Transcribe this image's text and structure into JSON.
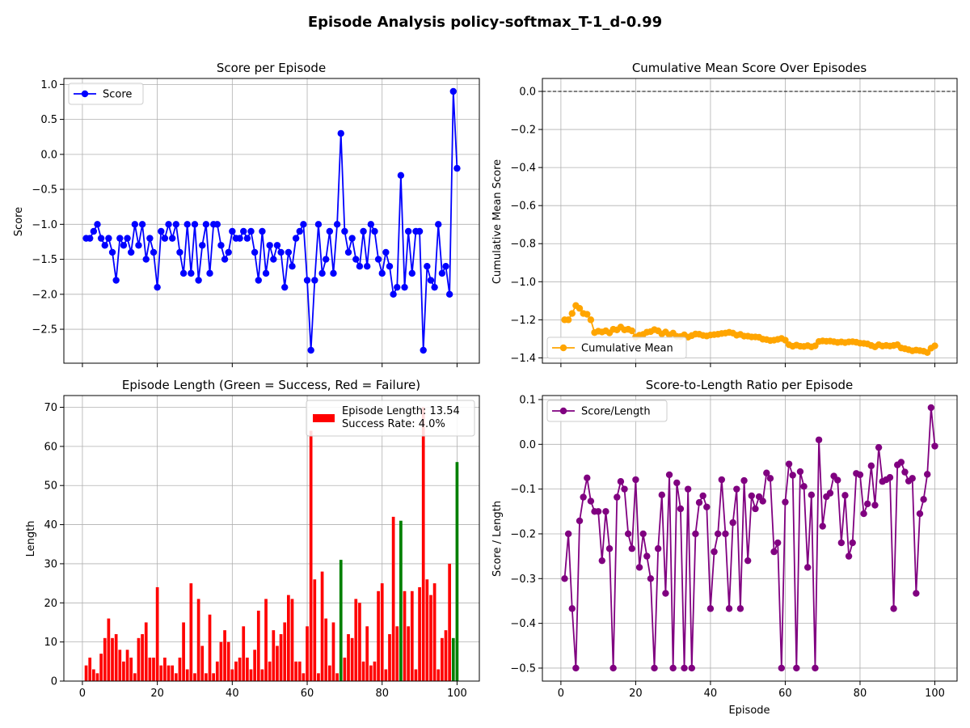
{
  "figure_title": "Episode Analysis policy-softmax_T-1_d-0.99",
  "chart_data": [
    {
      "id": "score",
      "type": "line",
      "title": "Score per Episode",
      "xlabel": "",
      "ylabel": "Score",
      "xlim": [
        -4.95,
        105.95
      ],
      "ylim": [
        -2.985,
        1.085
      ],
      "xticks": [
        0,
        20,
        40,
        60,
        80,
        100
      ],
      "show_xtick_labels": false,
      "yticks": [
        -2.5,
        -2.0,
        -1.5,
        -1.0,
        -0.5,
        0.0,
        0.5,
        1.0
      ],
      "ytick_labels": [
        "−2.5",
        "−2.0",
        "−1.5",
        "−1.0",
        "−0.5",
        "0.0",
        "0.5",
        "1.0"
      ],
      "grid": true,
      "legend": "top-left",
      "series": [
        {
          "name": "Score",
          "color": "#0000ff",
          "marker": "circle",
          "y": [
            -1.2,
            -1.2,
            -1.1,
            -1.0,
            -1.2,
            -1.3,
            -1.2,
            -1.4,
            -1.8,
            -1.2,
            -1.3,
            -1.2,
            -1.4,
            -1.0,
            -1.3,
            -1.0,
            -1.5,
            -1.2,
            -1.4,
            -1.9,
            -1.1,
            -1.2,
            -1.0,
            -1.2,
            -1.0,
            -1.4,
            -1.7,
            -1.0,
            -1.7,
            -1.0,
            -1.8,
            -1.3,
            -1.0,
            -1.7,
            -1.0,
            -1.0,
            -1.3,
            -1.5,
            -1.4,
            -1.1,
            -1.2,
            -1.2,
            -1.1,
            -1.2,
            -1.1,
            -1.4,
            -1.8,
            -1.1,
            -1.7,
            -1.3,
            -1.5,
            -1.3,
            -1.4,
            -1.9,
            -1.4,
            -1.6,
            -1.2,
            -1.1,
            -1.0,
            -1.8,
            -2.8,
            -1.8,
            -1.0,
            -1.7,
            -1.5,
            -1.1,
            -1.7,
            -1.0,
            0.3,
            -1.1,
            -1.4,
            -1.2,
            -1.5,
            -1.6,
            -1.1,
            -1.6,
            -1.0,
            -1.1,
            -1.5,
            -1.7,
            -1.4,
            -1.6,
            -2.0,
            -1.9,
            -0.3,
            -1.9,
            -1.1,
            -1.7,
            -1.1,
            -1.1,
            -2.8,
            -1.6,
            -1.8,
            -1.9,
            -1.0,
            -1.7,
            -1.6,
            -2.0,
            0.9,
            -0.2
          ]
        }
      ]
    },
    {
      "id": "cummean",
      "type": "line",
      "title": "Cumulative Mean Score Over Episodes",
      "xlabel": "",
      "ylabel": "Cumulative Mean Score",
      "xlim": [
        -4.95,
        105.95
      ],
      "ylim": [
        -1.428,
        0.068
      ],
      "xticks": [
        0,
        20,
        40,
        60,
        80,
        100
      ],
      "show_xtick_labels": false,
      "yticks": [
        -1.4,
        -1.2,
        -1.0,
        -0.8,
        -0.6,
        -0.4,
        -0.2,
        0.0
      ],
      "ytick_labels": [
        "−1.4",
        "−1.2",
        "−1.0",
        "−0.8",
        "−0.6",
        "−0.4",
        "−0.2",
        "0.0"
      ],
      "grid": true,
      "legend": "bottom-left",
      "hline": 0.0,
      "series": [
        {
          "name": "Cumulative Mean",
          "color": "#ffa500",
          "marker": "circle",
          "y": [
            -1.2,
            -1.2,
            -1.167,
            -1.125,
            -1.14,
            -1.167,
            -1.171,
            -1.2,
            -1.267,
            -1.26,
            -1.264,
            -1.258,
            -1.269,
            -1.25,
            -1.253,
            -1.238,
            -1.253,
            -1.25,
            -1.258,
            -1.29,
            -1.281,
            -1.277,
            -1.265,
            -1.262,
            -1.252,
            -1.258,
            -1.274,
            -1.264,
            -1.279,
            -1.27,
            -1.287,
            -1.288,
            -1.279,
            -1.291,
            -1.283,
            -1.275,
            -1.276,
            -1.282,
            -1.285,
            -1.28,
            -1.278,
            -1.276,
            -1.272,
            -1.27,
            -1.266,
            -1.27,
            -1.281,
            -1.277,
            -1.286,
            -1.286,
            -1.29,
            -1.29,
            -1.292,
            -1.302,
            -1.304,
            -1.309,
            -1.307,
            -1.303,
            -1.298,
            -1.307,
            -1.331,
            -1.339,
            -1.333,
            -1.339,
            -1.34,
            -1.336,
            -1.342,
            -1.337,
            -1.314,
            -1.311,
            -1.313,
            -1.312,
            -1.315,
            -1.319,
            -1.316,
            -1.32,
            -1.316,
            -1.315,
            -1.318,
            -1.323,
            -1.324,
            -1.327,
            -1.335,
            -1.342,
            -1.331,
            -1.338,
            -1.335,
            -1.338,
            -1.335,
            -1.331,
            -1.348,
            -1.352,
            -1.357,
            -1.363,
            -1.359,
            -1.362,
            -1.365,
            -1.372,
            -1.349,
            -1.337
          ]
        }
      ]
    },
    {
      "id": "length",
      "type": "bar",
      "title": "Episode Length (Green = Success, Red = Failure)",
      "xlabel": "",
      "ylabel": "Length",
      "xlim": [
        -4.95,
        105.95
      ],
      "ylim": [
        0,
        73
      ],
      "xticks": [
        0,
        20,
        40,
        60,
        80,
        100
      ],
      "show_xtick_labels": true,
      "yticks": [
        0,
        10,
        20,
        30,
        40,
        50,
        60,
        70
      ],
      "ytick_labels": [
        "0",
        "10",
        "20",
        "30",
        "40",
        "50",
        "60",
        "70"
      ],
      "grid": true,
      "legend": "top-right",
      "legend_lines": [
        "Episode Length: 13.54",
        "Success Rate: 4.0%"
      ],
      "colors": {
        "failure": "#ff0000",
        "success": "#008000"
      },
      "success_episodes": [
        69,
        85,
        99,
        100
      ],
      "values": [
        4,
        6,
        3,
        2,
        7,
        11,
        16,
        11,
        12,
        8,
        5,
        8,
        6,
        2,
        11,
        12,
        15,
        6,
        6,
        24,
        4,
        6,
        4,
        4,
        2,
        6,
        15,
        3,
        25,
        2,
        21,
        9,
        2,
        17,
        2,
        5,
        10,
        13,
        10,
        3,
        5,
        6,
        14,
        6,
        3,
        8,
        18,
        3,
        21,
        5,
        13,
        9,
        12,
        15,
        22,
        21,
        5,
        5,
        2,
        14,
        64,
        26,
        2,
        28,
        16,
        4,
        15,
        2,
        31,
        6,
        12,
        11,
        21,
        20,
        5,
        14,
        4,
        5,
        23,
        25,
        3,
        12,
        42,
        14,
        41,
        23,
        14,
        23,
        3,
        24,
        70,
        26,
        22,
        25,
        3,
        11,
        13,
        30,
        11,
        56
      ]
    },
    {
      "id": "ratio",
      "type": "line",
      "title": "Score-to-Length Ratio per Episode",
      "xlabel": "Episode",
      "ylabel": "Score / Length",
      "xlim": [
        -4.95,
        105.95
      ],
      "ylim": [
        -0.529,
        0.109
      ],
      "xticks": [
        0,
        20,
        40,
        60,
        80,
        100
      ],
      "show_xtick_labels": true,
      "yticks": [
        -0.5,
        -0.4,
        -0.3,
        -0.2,
        -0.1,
        0.0,
        0.1
      ],
      "ytick_labels": [
        "−0.5",
        "−0.4",
        "−0.3",
        "−0.2",
        "−0.1",
        "0.0",
        "0.1"
      ],
      "grid": true,
      "legend": "top-left",
      "series": [
        {
          "name": "Score/Length",
          "color": "#800080",
          "marker": "circle",
          "y": [
            -0.3,
            -0.2,
            -0.367,
            -0.5,
            -0.171,
            -0.118,
            -0.075,
            -0.127,
            -0.15,
            -0.15,
            -0.26,
            -0.15,
            -0.233,
            -0.5,
            -0.118,
            -0.083,
            -0.1,
            -0.2,
            -0.233,
            -0.079,
            -0.275,
            -0.2,
            -0.25,
            -0.3,
            -0.5,
            -0.233,
            -0.113,
            -0.333,
            -0.068,
            -0.5,
            -0.086,
            -0.144,
            -0.5,
            -0.1,
            -0.5,
            -0.2,
            -0.13,
            -0.115,
            -0.14,
            -0.367,
            -0.24,
            -0.2,
            -0.079,
            -0.2,
            -0.367,
            -0.175,
            -0.1,
            -0.367,
            -0.081,
            -0.26,
            -0.115,
            -0.144,
            -0.117,
            -0.127,
            -0.064,
            -0.076,
            -0.24,
            -0.22,
            -0.5,
            -0.129,
            -0.044,
            -0.069,
            -0.5,
            -0.061,
            -0.094,
            -0.275,
            -0.113,
            -0.5,
            0.01,
            -0.183,
            -0.117,
            -0.109,
            -0.071,
            -0.08,
            -0.22,
            -0.114,
            -0.25,
            -0.22,
            -0.065,
            -0.068,
            -0.155,
            -0.133,
            -0.048,
            -0.136,
            -0.007,
            -0.083,
            -0.079,
            -0.074,
            -0.367,
            -0.046,
            -0.04,
            -0.062,
            -0.082,
            -0.076,
            -0.333,
            -0.155,
            -0.123,
            -0.067,
            0.082,
            -0.004
          ]
        }
      ]
    }
  ]
}
